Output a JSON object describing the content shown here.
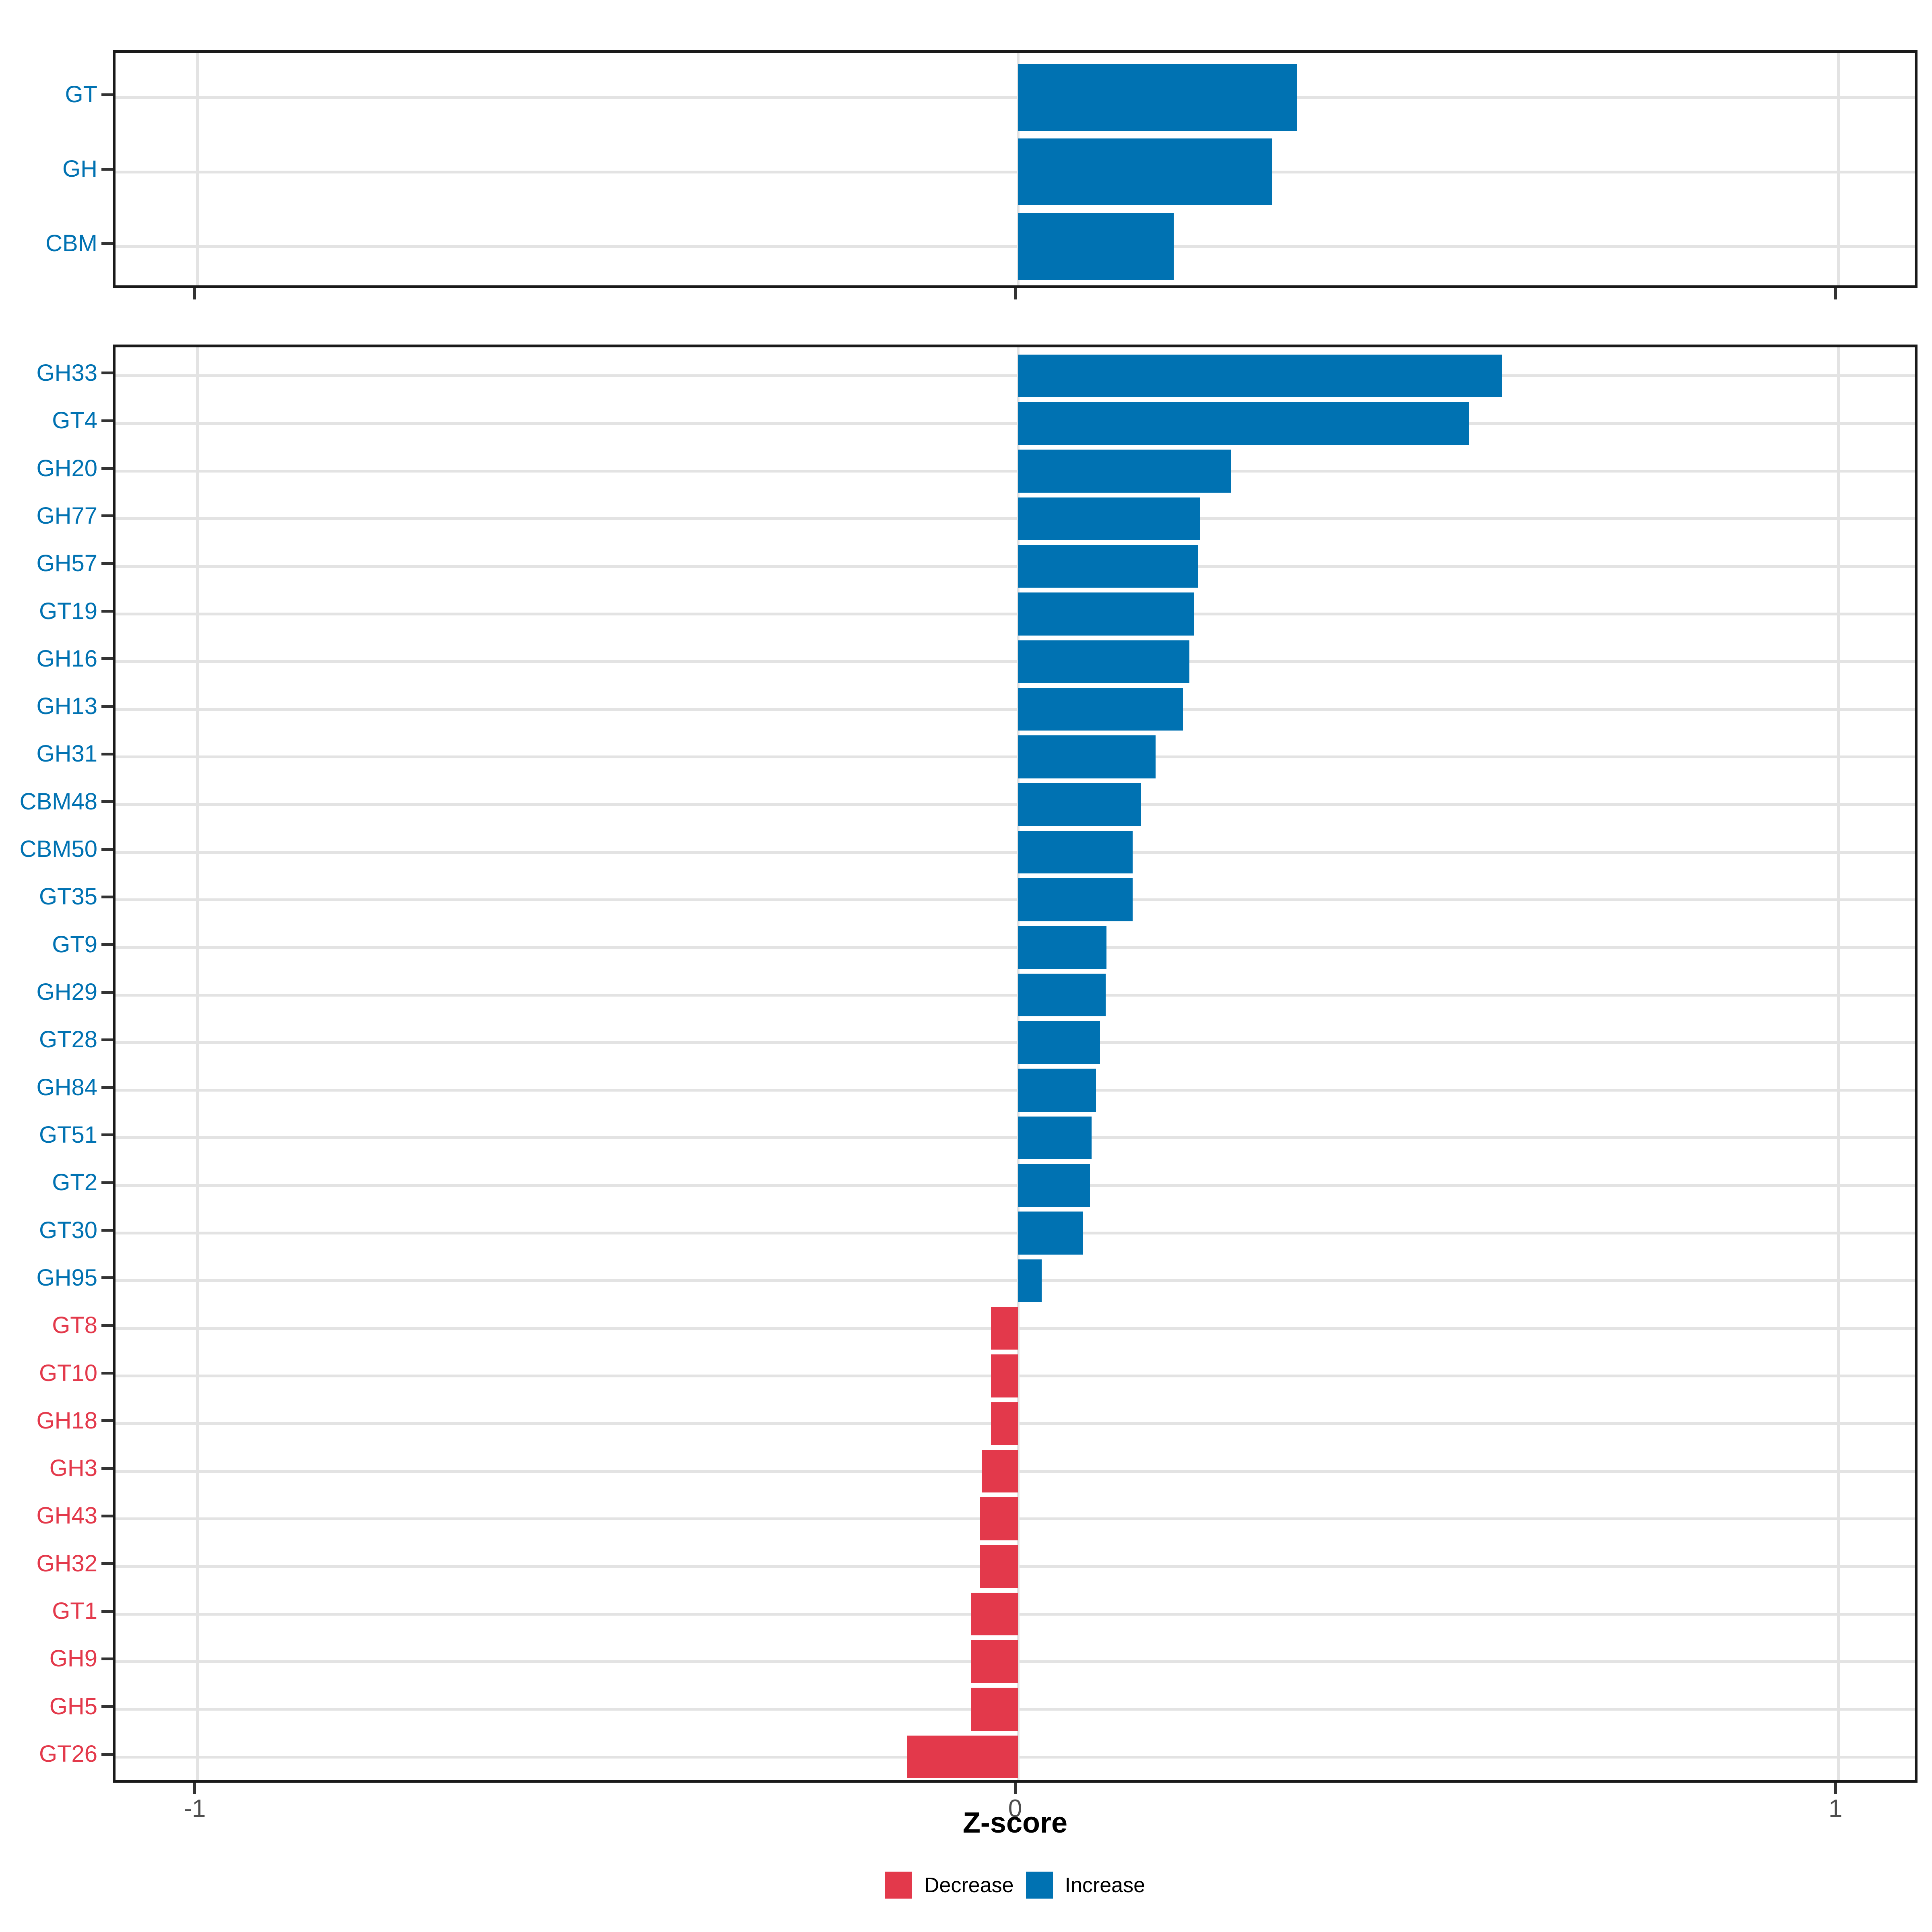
{
  "figure": {
    "background": "#FFFFFF",
    "panel_border_color": "#1A1A1A",
    "gridline_color": "#E3E3E3",
    "axis_tick_color": "#333333",
    "axis_tick_label_color": "#4D4D4D",
    "axis_title_color": "#000000"
  },
  "chart_data": {
    "type": "bar",
    "orientation": "horizontal",
    "title": "",
    "xlabel": "Z-score",
    "ylabel": "",
    "xlim": [
      -1.1,
      1.1
    ],
    "x_ticks": [
      "-1",
      "0",
      "1"
    ],
    "x_tick_values": [
      -1,
      0,
      1
    ],
    "grid": "major-only",
    "legend_position": "bottom",
    "legend": [
      {
        "label": "Decrease",
        "color": "#E3394B"
      },
      {
        "label": "Increase",
        "color": "#0072B2"
      }
    ],
    "panels": [
      {
        "name": "cazyme-class-summary",
        "categories": [
          "GT",
          "GH",
          "CBM"
        ],
        "values": [
          0.34,
          0.31,
          0.19
        ],
        "directions": [
          "Increase",
          "Increase",
          "Increase"
        ]
      },
      {
        "name": "cazyme-families",
        "categories": [
          "GH33",
          "GT4",
          "GH20",
          "GH77",
          "GH57",
          "GT19",
          "GH16",
          "GH13",
          "GH31",
          "CBM48",
          "CBM50",
          "GT35",
          "GT9",
          "GH29",
          "GT28",
          "GH84",
          "GT51",
          "GT2",
          "GT30",
          "GH95",
          "GT8",
          "GT10",
          "GH18",
          "GH3",
          "GH43",
          "GH32",
          "GT1",
          "GH9",
          "GH5",
          "GT26"
        ],
        "values": [
          0.59,
          0.55,
          0.26,
          0.222,
          0.22,
          0.215,
          0.209,
          0.201,
          0.168,
          0.15,
          0.14,
          0.14,
          0.108,
          0.107,
          0.1,
          0.095,
          0.09,
          0.088,
          0.079,
          0.029,
          -0.033,
          -0.033,
          -0.033,
          -0.044,
          -0.046,
          -0.046,
          -0.057,
          -0.057,
          -0.057,
          -0.135
        ],
        "directions": [
          "Increase",
          "Increase",
          "Increase",
          "Increase",
          "Increase",
          "Increase",
          "Increase",
          "Increase",
          "Increase",
          "Increase",
          "Increase",
          "Increase",
          "Increase",
          "Increase",
          "Increase",
          "Increase",
          "Increase",
          "Increase",
          "Increase",
          "Increase",
          "Decrease",
          "Decrease",
          "Decrease",
          "Decrease",
          "Decrease",
          "Decrease",
          "Decrease",
          "Decrease",
          "Decrease",
          "Decrease"
        ]
      }
    ]
  }
}
